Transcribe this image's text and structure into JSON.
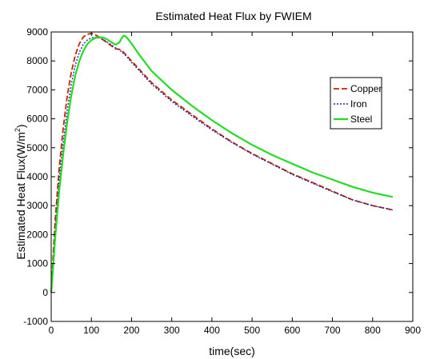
{
  "chart_data": {
    "type": "line",
    "title": "Estimated Heat Flux by FWIEM",
    "xlabel": "time(sec)",
    "ylabel_main": "Estimated Heat Flux(W/m",
    "ylabel_sup": "2",
    "ylabel_close": ")",
    "xlim": [
      0,
      900
    ],
    "ylim": [
      -1000,
      9000
    ],
    "xticks": [
      0,
      100,
      200,
      300,
      400,
      500,
      600,
      700,
      800,
      900
    ],
    "yticks": [
      -1000,
      0,
      1000,
      2000,
      3000,
      4000,
      5000,
      6000,
      7000,
      8000,
      9000
    ],
    "grid": false,
    "legend_position": "upper-right",
    "series": [
      {
        "name": "Copper",
        "color": "#cc2200",
        "style": "dashed",
        "x": [
          0,
          5,
          10,
          20,
          30,
          40,
          50,
          60,
          70,
          80,
          90,
          100,
          110,
          120,
          130,
          140,
          150,
          160,
          170,
          180,
          190,
          200,
          250,
          300,
          350,
          400,
          450,
          500,
          550,
          600,
          650,
          700,
          750,
          800,
          850
        ],
        "y": [
          0,
          1300,
          2500,
          4300,
          5700,
          6800,
          7600,
          8200,
          8600,
          8830,
          8920,
          8950,
          8900,
          8820,
          8720,
          8620,
          8520,
          8420,
          8400,
          8300,
          8150,
          8000,
          7250,
          6650,
          6150,
          5650,
          5200,
          4800,
          4450,
          4100,
          3800,
          3500,
          3200,
          3000,
          2850
        ]
      },
      {
        "name": "Iron",
        "color": "#2222aa",
        "style": "dotted",
        "x": [
          0,
          5,
          10,
          20,
          30,
          40,
          50,
          60,
          70,
          80,
          90,
          100,
          110,
          120,
          130,
          140,
          150,
          160,
          170,
          180,
          190,
          200,
          250,
          300,
          350,
          400,
          450,
          500,
          550,
          600,
          650,
          700,
          750,
          800,
          850
        ],
        "y": [
          0,
          1100,
          2200,
          3900,
          5200,
          6300,
          7200,
          7850,
          8300,
          8580,
          8720,
          8800,
          8820,
          8790,
          8730,
          8650,
          8550,
          8450,
          8380,
          8260,
          8120,
          7950,
          7200,
          6600,
          6100,
          5620,
          5180,
          4780,
          4430,
          4080,
          3780,
          3480,
          3200,
          3000,
          2850
        ]
      },
      {
        "name": "Steel",
        "color": "#22dd22",
        "style": "solid",
        "x": [
          0,
          5,
          10,
          20,
          30,
          40,
          50,
          60,
          70,
          80,
          90,
          100,
          110,
          120,
          130,
          140,
          150,
          160,
          170,
          175,
          180,
          185,
          190,
          200,
          220,
          250,
          300,
          350,
          400,
          450,
          500,
          550,
          600,
          650,
          700,
          750,
          800,
          850
        ],
        "y": [
          0,
          900,
          1900,
          3500,
          4800,
          5900,
          6800,
          7500,
          8000,
          8350,
          8580,
          8720,
          8790,
          8820,
          8800,
          8740,
          8640,
          8560,
          8640,
          8780,
          8870,
          8850,
          8780,
          8600,
          8200,
          7650,
          7000,
          6450,
          5950,
          5500,
          5100,
          4750,
          4450,
          4150,
          3900,
          3650,
          3450,
          3300
        ]
      }
    ]
  }
}
